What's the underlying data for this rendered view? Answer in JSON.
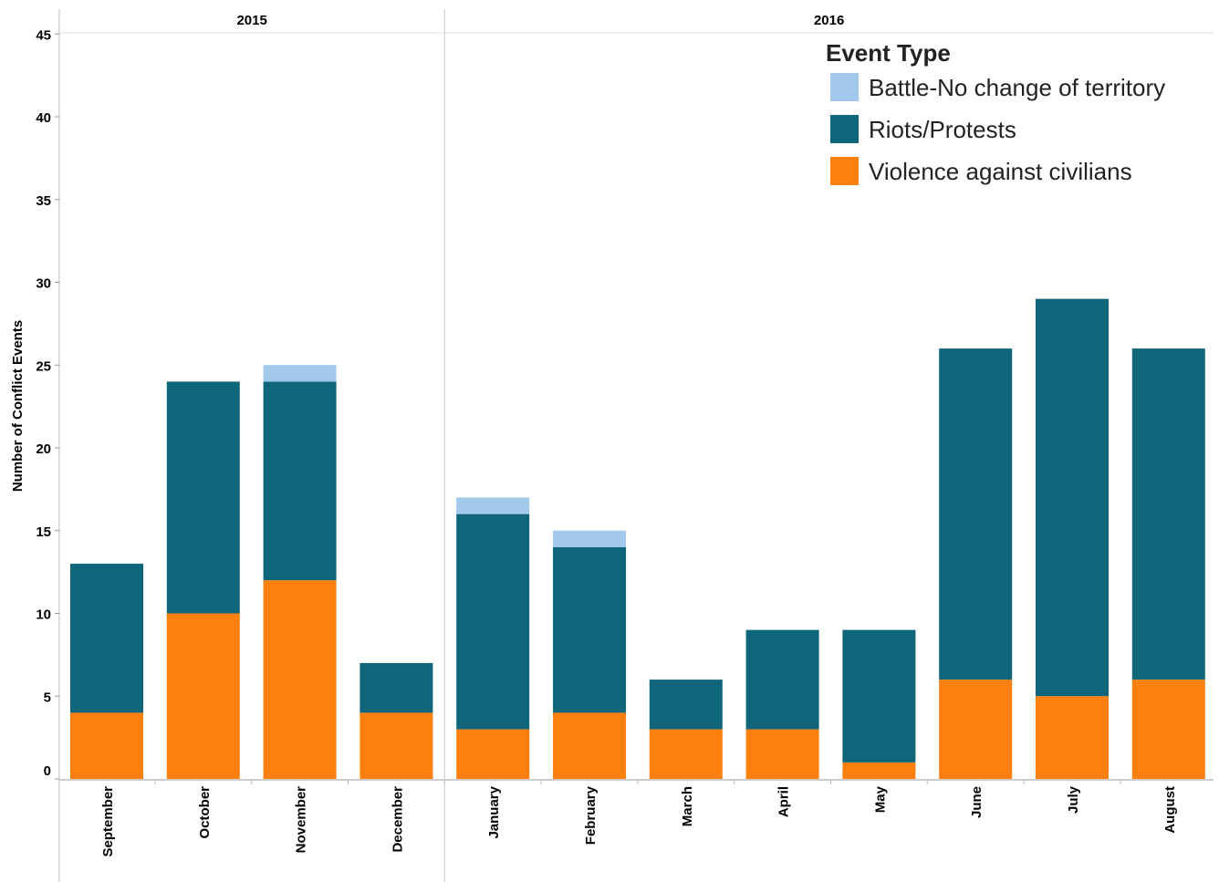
{
  "chart_data": {
    "type": "bar",
    "stacked": true,
    "ylabel": "Number of Conflict Events",
    "ylim": [
      0,
      45
    ],
    "yticks": [
      0,
      5,
      10,
      15,
      20,
      25,
      30,
      35,
      40,
      45
    ],
    "groups": [
      {
        "label": "2015",
        "categories": [
          "September",
          "October",
          "November",
          "December"
        ]
      },
      {
        "label": "2016",
        "categories": [
          "January",
          "February",
          "March",
          "April",
          "May",
          "June",
          "July",
          "August"
        ]
      }
    ],
    "categories": [
      "September",
      "October",
      "November",
      "December",
      "January",
      "February",
      "March",
      "April",
      "May",
      "June",
      "July",
      "August"
    ],
    "series": [
      {
        "name": "Violence against civilians",
        "color": "#fd7f0e",
        "values": [
          4,
          10,
          12,
          4,
          3,
          4,
          3,
          3,
          1,
          6,
          5,
          6
        ]
      },
      {
        "name": "Riots/Protests",
        "color": "#0f6579",
        "values": [
          9,
          14,
          12,
          3,
          13,
          10,
          3,
          6,
          8,
          20,
          24,
          20
        ]
      },
      {
        "name": "Battle-No change of territory",
        "color": "#a2c8ec",
        "values": [
          0,
          0,
          1,
          0,
          1,
          1,
          0,
          0,
          0,
          0,
          0,
          0
        ]
      }
    ],
    "legend": {
      "title": "Event Type",
      "position": "top-right",
      "items": [
        {
          "name": "Battle-No change of territory",
          "color": "#a2c8ec"
        },
        {
          "name": "Riots/Protests",
          "color": "#0f6579"
        },
        {
          "name": "Violence against civilians",
          "color": "#fd7f0e"
        }
      ]
    },
    "grid": false
  }
}
